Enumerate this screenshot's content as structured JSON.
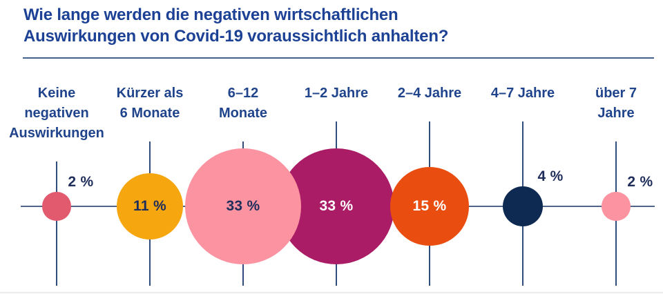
{
  "header": {
    "title_lines": [
      "Wie lange werden die negativen wirtschaftlichen",
      "Auswirkungen von Covid-19 voraussichtlich anhalten?"
    ]
  },
  "chart_data": {
    "type": "bubble",
    "title": "Wie lange werden die negativen wirtschaftlichen Auswirkungen von Covid-19 voraussichtlich anhalten?",
    "unit": "%",
    "scaling": "bubble area proportional to value",
    "legend": "none",
    "axis": "single categorical axis with crosshair gridlines, no numeric ticks",
    "categories": [
      "Keine negativen Auswirkungen",
      "Kürzer als 6 Monate",
      "6–12 Monate",
      "1–2 Jahre",
      "2–4 Jahre",
      "4–7 Jahre",
      "über 7 Jahre"
    ],
    "values": [
      2,
      11,
      33,
      33,
      15,
      4,
      2
    ],
    "points": [
      {
        "category": "Keine negativen Auswirkungen",
        "label_lines": [
          "Keine",
          "negativen",
          "Auswirkungen"
        ],
        "value": 2,
        "value_label": "2 %",
        "bubble_color": "#e25a6e",
        "value_placement": "outside",
        "value_text_color": "#1e2d5a"
      },
      {
        "category": "Kürzer als 6 Monate",
        "label_lines": [
          "Kürzer als",
          "6 Monate"
        ],
        "value": 11,
        "value_label": "11 %",
        "bubble_color": "#f6a70f",
        "value_placement": "inside",
        "value_text_color": "#1e2d5a"
      },
      {
        "category": "6–12 Monate",
        "label_lines": [
          "6–12",
          "Monate"
        ],
        "value": 33,
        "value_label": "33 %",
        "bubble_color": "#fb93a1",
        "value_placement": "inside",
        "value_text_color": "#1e2d5a"
      },
      {
        "category": "1–2 Jahre",
        "label_lines": [
          "1–2 Jahre"
        ],
        "value": 33,
        "value_label": "33 %",
        "bubble_color": "#ab1c66",
        "value_placement": "inside",
        "value_text_color": "#ffffff"
      },
      {
        "category": "2–4 Jahre",
        "label_lines": [
          "2–4 Jahre"
        ],
        "value": 15,
        "value_label": "15 %",
        "bubble_color": "#e94e10",
        "value_placement": "inside",
        "value_text_color": "#ffffff"
      },
      {
        "category": "4–7 Jahre",
        "label_lines": [
          "4–7 Jahre"
        ],
        "value": 4,
        "value_label": "4 %",
        "bubble_color": "#0e2a52",
        "value_placement": "outside",
        "value_text_color": "#1e2d5a"
      },
      {
        "category": "über 7 Jahre",
        "label_lines": [
          "über 7",
          "Jahre"
        ],
        "value": 2,
        "value_label": "2 %",
        "bubble_color": "#fb93a1",
        "value_placement": "outside",
        "value_text_color": "#1e2d5a"
      }
    ],
    "colors": {
      "title_text": "#1c4195",
      "category_text": "#20448c",
      "value_text_dark": "#1e2d5a",
      "value_text_light": "#ffffff",
      "axis_line": "#4e6488",
      "gridline": "#2e4d7c",
      "rule": "#44608c",
      "background": "#ffffff"
    }
  }
}
